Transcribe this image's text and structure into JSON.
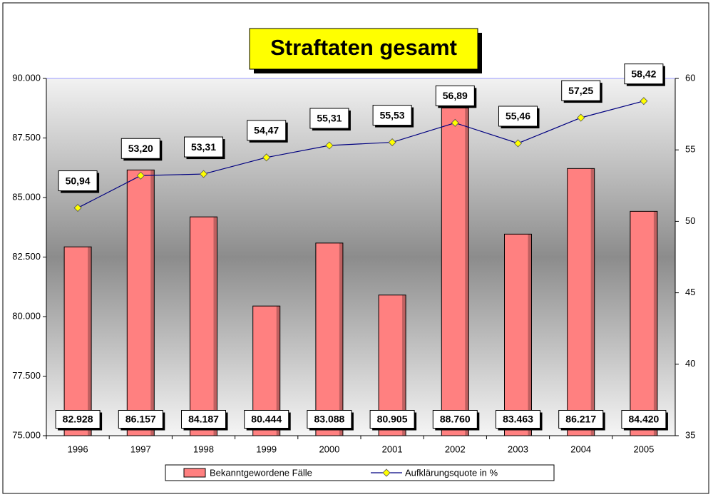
{
  "chart_data": {
    "type": "bar",
    "title": "Straftaten gesamt",
    "categories": [
      "1996",
      "1997",
      "1998",
      "1999",
      "2000",
      "2001",
      "2002",
      "2003",
      "2004",
      "2005"
    ],
    "series": [
      {
        "name": "Bekanntgewordene Fälle",
        "type": "bar",
        "color": "#ff8080",
        "values": [
          82928,
          86157,
          84187,
          80444,
          83088,
          80905,
          88760,
          83463,
          86217,
          84420
        ],
        "value_labels": [
          "82.928",
          "86.157",
          "84.187",
          "80.444",
          "83.088",
          "80.905",
          "88.760",
          "83.463",
          "86.217",
          "84.420"
        ]
      },
      {
        "name": "Aufklärungsquote in %",
        "type": "line",
        "axis": "y2",
        "color": "#000080",
        "marker_color": "#ffff00",
        "values": [
          50.94,
          53.2,
          53.31,
          54.47,
          55.31,
          55.53,
          56.89,
          55.46,
          57.25,
          58.42
        ],
        "value_labels": [
          "50,94",
          "53,20",
          "53,31",
          "54,47",
          "55,31",
          "55,53",
          "56,89",
          "55,46",
          "57,25",
          "58,42"
        ]
      }
    ],
    "ylim": [
      75000,
      90000
    ],
    "yticks": [
      {
        "value": 75000,
        "label": "75.000"
      },
      {
        "value": 77500,
        "label": "77.500"
      },
      {
        "value": 80000,
        "label": "80.000"
      },
      {
        "value": 82500,
        "label": "82.500"
      },
      {
        "value": 85000,
        "label": "85.000"
      },
      {
        "value": 87500,
        "label": "87.500"
      },
      {
        "value": 90000,
        "label": "90.000"
      }
    ],
    "y2lim": [
      35,
      60
    ],
    "y2ticks": [
      35,
      40,
      45,
      50,
      55,
      60
    ],
    "legend": "bottom"
  }
}
